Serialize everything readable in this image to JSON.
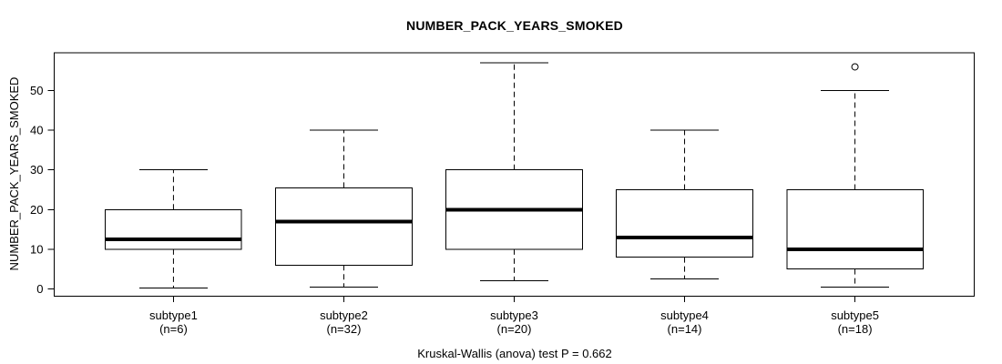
{
  "chart_data": {
    "type": "boxplot",
    "title": "NUMBER_PACK_YEARS_SMOKED",
    "ylabel": "NUMBER_PACK_YEARS_SMOKED",
    "xlabel": "",
    "footer": "Kruskal-Wallis (anova) test P = 0.662",
    "y_ticks": [
      0,
      10,
      20,
      30,
      40,
      50
    ],
    "ylim": [
      -1.85,
      59.55
    ],
    "grid": false,
    "legend": "none",
    "colors": {
      "stroke": "#000000",
      "box_fill": "#ffffff",
      "background": "#ffffff"
    },
    "groups": [
      {
        "label": "subtype1",
        "sublabel": "(n=6)",
        "n": 6,
        "whisker_low": 0.25,
        "q1": 10,
        "median": 12.5,
        "q3": 20,
        "whisker_high": 30,
        "outliers": []
      },
      {
        "label": "subtype2",
        "sublabel": "(n=32)",
        "n": 32,
        "whisker_low": 0.5,
        "q1": 6,
        "median": 17,
        "q3": 25.5,
        "whisker_high": 40,
        "outliers": []
      },
      {
        "label": "subtype3",
        "sublabel": "(n=20)",
        "n": 20,
        "whisker_low": 2,
        "q1": 10,
        "median": 20,
        "q3": 30,
        "whisker_high": 57,
        "outliers": []
      },
      {
        "label": "subtype4",
        "sublabel": "(n=14)",
        "n": 14,
        "whisker_low": 2.5,
        "q1": 8,
        "median": 13,
        "q3": 25,
        "whisker_high": 40,
        "outliers": []
      },
      {
        "label": "subtype5",
        "sublabel": "(n=18)",
        "n": 18,
        "whisker_low": 0.5,
        "q1": 5,
        "median": 10,
        "q3": 25,
        "whisker_high": 50,
        "outliers": [
          56
        ]
      }
    ]
  }
}
